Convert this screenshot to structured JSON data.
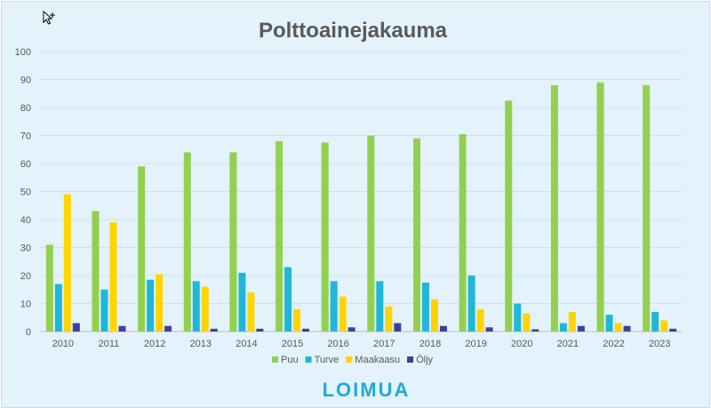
{
  "chart_data": {
    "type": "bar",
    "title": "Polttoainejakauma",
    "xlabel": "",
    "ylabel": "",
    "categories": [
      "2010",
      "2011",
      "2012",
      "2013",
      "2014",
      "2015",
      "2016",
      "2017",
      "2018",
      "2019",
      "2020",
      "2021",
      "2022",
      "2023"
    ],
    "series": [
      {
        "name": "Puu",
        "color": "#92d050",
        "values": [
          31,
          43,
          59,
          64,
          64,
          68,
          67.5,
          70,
          69,
          70.5,
          82.5,
          88,
          89,
          88
        ]
      },
      {
        "name": "Turve",
        "color": "#1fb7d8",
        "values": [
          17,
          15,
          18.5,
          18,
          21,
          23,
          18,
          18,
          17.5,
          20,
          10,
          3,
          6,
          7
        ]
      },
      {
        "name": "Maakaasu",
        "color": "#ffd400",
        "values": [
          49,
          39,
          20.5,
          16,
          14,
          8,
          12.5,
          9,
          11.5,
          8,
          6.5,
          7,
          3,
          4
        ]
      },
      {
        "name": "Öljy",
        "color": "#3f3f9c",
        "values": [
          3,
          2,
          2,
          1,
          1,
          1,
          1.5,
          3,
          2,
          1.5,
          0.8,
          2,
          2,
          1
        ]
      }
    ],
    "ylim": [
      0,
      100
    ],
    "yticks": [
      0,
      10,
      20,
      30,
      40,
      50,
      60,
      70,
      80,
      90,
      100
    ],
    "grid": true,
    "legend_position": "bottom"
  },
  "logo": {
    "text": "LOIMUA"
  },
  "icons": {
    "cursor": "move-cursor-icon"
  }
}
